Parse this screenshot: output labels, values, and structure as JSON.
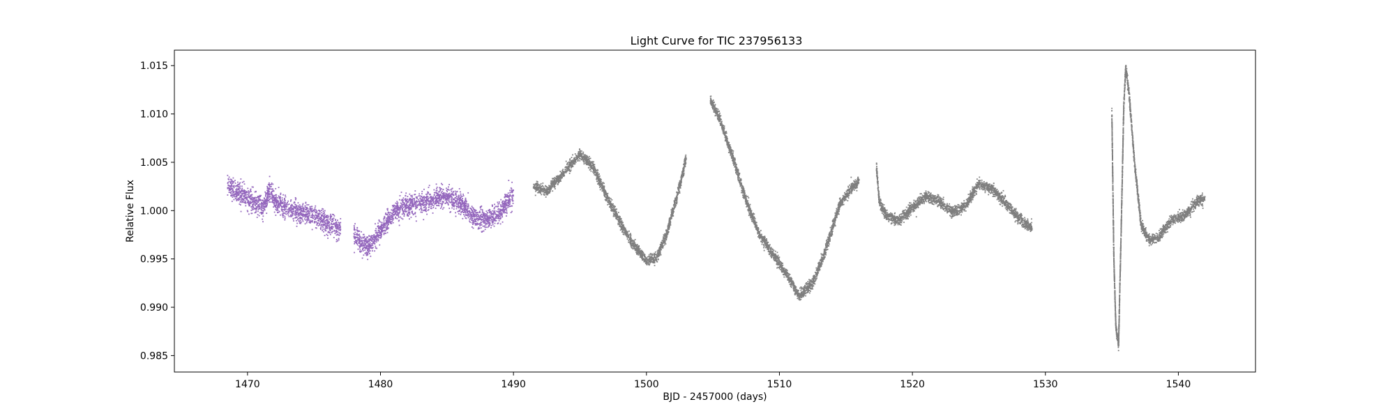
{
  "chart_data": {
    "type": "scatter",
    "title": "Light Curve for TIC 237956133",
    "xlabel": "BJD - 2457000 (days)",
    "ylabel": "Relative Flux",
    "xlim": [
      1464.5,
      1545.8
    ],
    "ylim": [
      0.9833,
      1.0166
    ],
    "xticks": [
      1470,
      1480,
      1490,
      1500,
      1510,
      1520,
      1530,
      1540
    ],
    "yticks": [
      0.985,
      0.99,
      0.995,
      1.0,
      1.005,
      1.01,
      1.015
    ],
    "ytick_decimals": 3,
    "grid": false,
    "legend": "none",
    "series": [
      {
        "color": "#9467bd",
        "marker": "dot",
        "scatter_width": 0.0012,
        "segments": [
          [
            [
              1468.5,
              1.0025
            ],
            [
              1469.5,
              1.0018
            ],
            [
              1470.5,
              1.0008
            ],
            [
              1471.2,
              1.0002
            ],
            [
              1471.6,
              1.002
            ],
            [
              1472.2,
              1.0008
            ],
            [
              1473.0,
              1.0002
            ],
            [
              1474.0,
              0.9998
            ],
            [
              1475.0,
              0.9994
            ],
            [
              1476.0,
              0.9987
            ],
            [
              1477.0,
              0.998
            ]
          ],
          [
            [
              1478.0,
              0.9975
            ],
            [
              1479.0,
              0.9962
            ],
            [
              1480.0,
              0.9978
            ],
            [
              1481.0,
              0.9998
            ],
            [
              1482.0,
              1.0005
            ],
            [
              1483.0,
              1.0008
            ],
            [
              1484.0,
              1.0012
            ],
            [
              1485.0,
              1.0015
            ],
            [
              1486.0,
              1.0008
            ],
            [
              1487.0,
              0.9993
            ],
            [
              1488.0,
              0.999
            ],
            [
              1489.0,
              0.9998
            ],
            [
              1490.0,
              1.0018
            ]
          ]
        ]
      },
      {
        "color": "#7f7f7f",
        "marker": "dot",
        "scatter_width": 0.0006,
        "segments": [
          [
            [
              1491.5,
              1.0025
            ],
            [
              1492.5,
              1.002
            ],
            [
              1493.5,
              1.0035
            ],
            [
              1495.0,
              1.0058
            ],
            [
              1496.0,
              1.0045
            ],
            [
              1497.0,
              1.0015
            ],
            [
              1498.0,
              0.9988
            ],
            [
              1499.0,
              0.9965
            ],
            [
              1500.0,
              0.9948
            ],
            [
              1500.8,
              0.9952
            ],
            [
              1501.5,
              0.9975
            ],
            [
              1502.5,
              1.0025
            ],
            [
              1503.0,
              1.0055
            ]
          ],
          [
            [
              1504.8,
              1.0115
            ],
            [
              1505.5,
              1.0095
            ],
            [
              1506.5,
              1.0055
            ],
            [
              1507.5,
              1.001
            ],
            [
              1508.5,
              0.9975
            ],
            [
              1509.5,
              0.9955
            ],
            [
              1510.5,
              0.9935
            ],
            [
              1511.5,
              0.9912
            ],
            [
              1512.5,
              0.9925
            ],
            [
              1513.5,
              0.996
            ],
            [
              1514.5,
              1.0005
            ],
            [
              1515.5,
              1.0025
            ],
            [
              1516.0,
              1.003
            ]
          ],
          [
            [
              1517.3,
              1.0045
            ],
            [
              1517.5,
              1.001
            ],
            [
              1518.0,
              0.9995
            ],
            [
              1519.0,
              0.999
            ],
            [
              1520.0,
              1.0003
            ],
            [
              1521.0,
              1.0015
            ],
            [
              1522.0,
              1.001
            ],
            [
              1523.0,
              0.9998
            ],
            [
              1524.0,
              1.0005
            ],
            [
              1525.0,
              1.0028
            ],
            [
              1526.0,
              1.0022
            ],
            [
              1527.0,
              1.0008
            ],
            [
              1528.0,
              0.9992
            ],
            [
              1529.0,
              0.9982
            ]
          ],
          [
            [
              1535.0,
              1.01
            ],
            [
              1535.15,
              0.995
            ],
            [
              1535.3,
              0.988
            ],
            [
              1535.5,
              0.986
            ],
            [
              1535.7,
              0.998
            ],
            [
              1535.9,
              1.011
            ],
            [
              1536.05,
              1.0148
            ],
            [
              1536.3,
              1.012
            ],
            [
              1536.7,
              1.005
            ],
            [
              1537.2,
              0.9985
            ],
            [
              1537.8,
              0.997
            ],
            [
              1538.5,
              0.9972
            ],
            [
              1539.5,
              0.999
            ],
            [
              1540.5,
              0.9995
            ],
            [
              1541.5,
              1.001
            ],
            [
              1542.0,
              1.0012
            ]
          ]
        ]
      }
    ]
  }
}
